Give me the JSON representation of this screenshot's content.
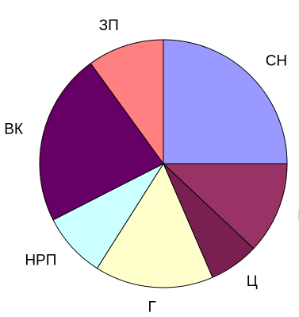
{
  "chart_data": {
    "type": "pie",
    "title": "",
    "legend": "none",
    "start": "12 o'clock",
    "direction": "clockwise",
    "slices": [
      {
        "label": "СН",
        "value": 25.0,
        "color": "#9999ff"
      },
      {
        "label": "К",
        "value": 12.0,
        "color": "#993366"
      },
      {
        "label": "Ц",
        "value": 6.5,
        "color": "#7a1f52"
      },
      {
        "label": "Г",
        "value": 15.5,
        "color": "#ffffcc"
      },
      {
        "label": "НРП",
        "value": 8.5,
        "color": "#ccffff"
      },
      {
        "label": "ВК",
        "value": 22.5,
        "color": "#660066"
      },
      {
        "label": "ЗП",
        "value": 10.0,
        "color": "#ff8080"
      }
    ]
  }
}
